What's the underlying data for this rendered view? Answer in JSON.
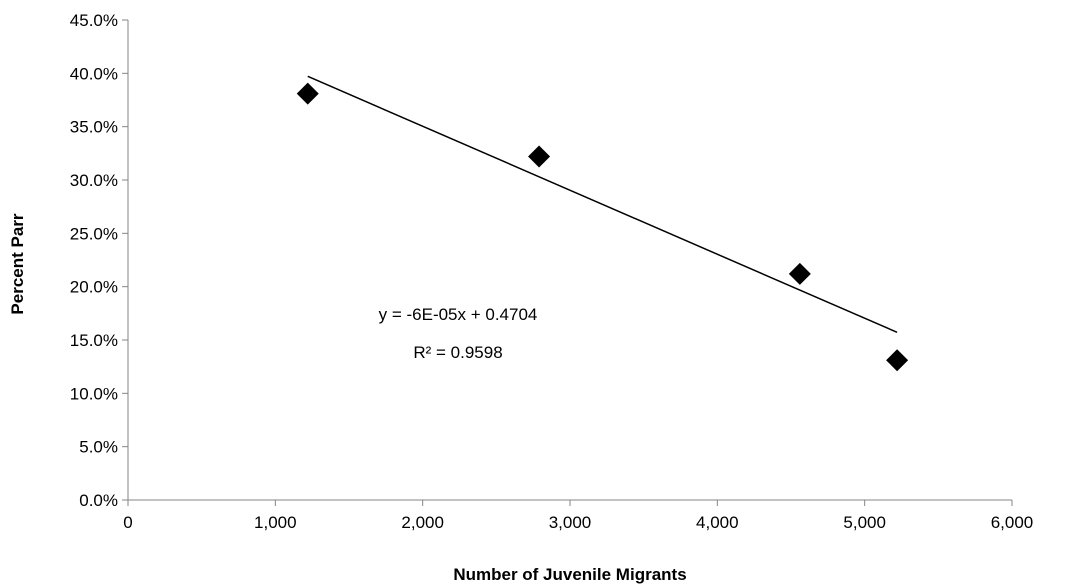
{
  "chart_data": {
    "type": "scatter",
    "xlabel": "Number of Juvenile Migrants",
    "ylabel": "Percent Parr",
    "xlim": [
      0,
      6000
    ],
    "ylim": [
      0,
      0.45
    ],
    "x_ticks": [
      0,
      1000,
      2000,
      3000,
      4000,
      5000,
      6000
    ],
    "x_tick_labels": [
      "0",
      "1,000",
      "2,000",
      "3,000",
      "4,000",
      "5,000",
      "6,000"
    ],
    "y_ticks": [
      0,
      0.05,
      0.1,
      0.15,
      0.2,
      0.25,
      0.3,
      0.35,
      0.4,
      0.45
    ],
    "y_tick_labels": [
      "0.0%",
      "5.0%",
      "10.0%",
      "15.0%",
      "20.0%",
      "25.0%",
      "30.0%",
      "35.0%",
      "40.0%",
      "45.0%"
    ],
    "grid": false,
    "legend": "none",
    "marker": "diamond",
    "marker_color": "#000000",
    "series": [
      {
        "points": [
          {
            "x": 1220,
            "y": 0.381
          },
          {
            "x": 2790,
            "y": 0.322
          },
          {
            "x": 4560,
            "y": 0.212
          },
          {
            "x": 5220,
            "y": 0.131
          }
        ]
      }
    ],
    "trendline": {
      "type": "linear",
      "slope": -6e-05,
      "intercept": 0.4704,
      "x_start": 1220,
      "x_end": 5220,
      "equation_label": "y = -6E-05x + 0.4704",
      "r2_label": "R² = 0.9598"
    }
  }
}
